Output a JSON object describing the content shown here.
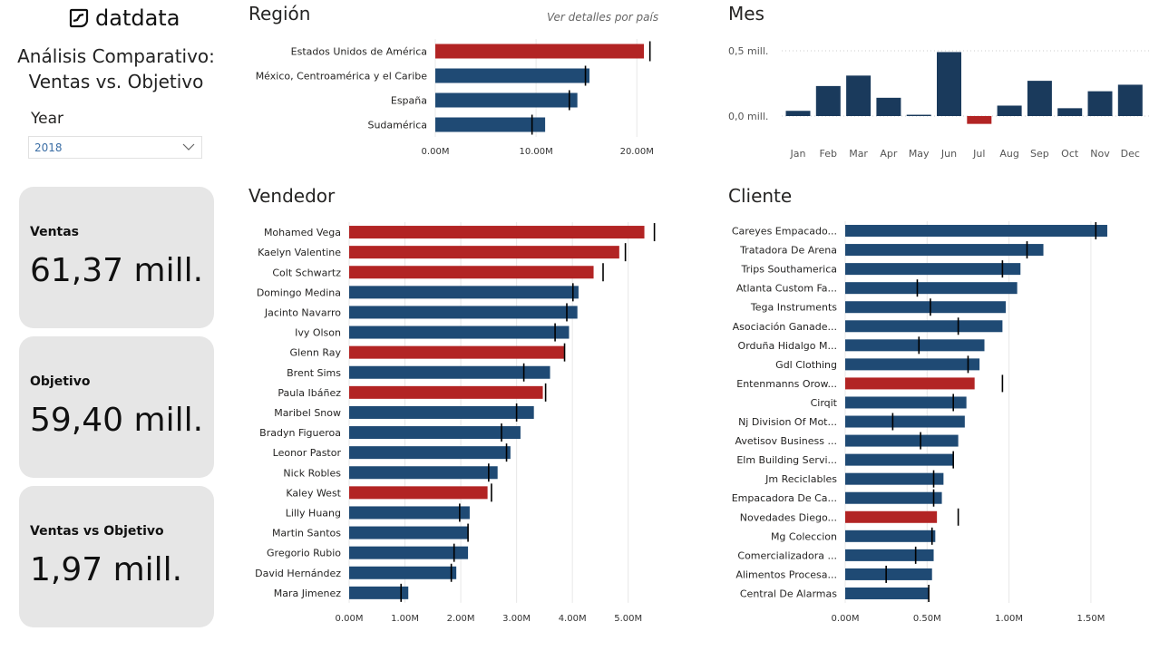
{
  "brand": {
    "name": "datdata"
  },
  "header": {
    "title_line1": "Análisis Comparativo:",
    "title_line2": "Ventas vs. Objetivo"
  },
  "filter": {
    "label": "Year",
    "value": "2018"
  },
  "kpis": [
    {
      "label": "Ventas",
      "value": "61,37 mill."
    },
    {
      "label": "Objetivo",
      "value": "59,40 mill."
    },
    {
      "label": "Ventas vs Objetivo",
      "value": "1,97 mill."
    }
  ],
  "region_link": "Ver detalles por país",
  "colors": {
    "above": "#1f4a74",
    "below": "#b22424",
    "target": "#000000",
    "grid": "#e8e8e8"
  },
  "chart_data": [
    {
      "id": "region",
      "type": "bar",
      "orientation": "horizontal",
      "title": "Región",
      "categories": [
        "Estados Unidos de América",
        "México, Centroamérica y el Caribe",
        "España",
        "Sudamérica"
      ],
      "values": [
        20.7,
        15.3,
        14.1,
        10.9
      ],
      "targets": [
        21.3,
        14.9,
        13.3,
        9.6
      ],
      "unit": "M",
      "xlim": [
        0,
        21.6
      ],
      "ticks": [
        {
          "v": 0,
          "label": "0.00M"
        },
        {
          "v": 10,
          "label": "10.00M"
        },
        {
          "v": 20,
          "label": "20.00M"
        }
      ]
    },
    {
      "id": "mes",
      "type": "bar",
      "orientation": "vertical",
      "title": "Mes",
      "categories": [
        "Jan",
        "Feb",
        "Mar",
        "Apr",
        "May",
        "Jun",
        "Jul",
        "Aug",
        "Sep",
        "Oct",
        "Nov",
        "Dec"
      ],
      "values": [
        0.04,
        0.23,
        0.31,
        0.14,
        0.01,
        0.49,
        -0.06,
        0.08,
        0.27,
        0.06,
        0.19,
        0.24
      ],
      "unit": "mill.",
      "ylim": [
        -0.1,
        0.55
      ],
      "ticks": [
        {
          "v": 0.5,
          "label": "0,5 mill."
        },
        {
          "v": 0,
          "label": "0,0 mill."
        }
      ]
    },
    {
      "id": "vendedor",
      "type": "bar",
      "orientation": "horizontal",
      "title": "Vendedor",
      "categories": [
        "Mohamed Vega",
        "Kaelyn Valentine",
        "Colt Schwartz",
        "Domingo Medina",
        "Jacinto Navarro",
        "Ivy Olson",
        "Glenn Ray",
        "Brent Sims",
        "Paula Ibáñez",
        "Maribel Snow",
        "Bradyn Figueroa",
        "Leonor Pastor",
        "Nick Robles",
        "Kaley West",
        "Lilly Huang",
        "Martin Santos",
        "Gregorio Rubio",
        "David Hernández",
        "Mara Jimenez"
      ],
      "values": [
        5.29,
        4.84,
        4.38,
        4.11,
        4.09,
        3.94,
        3.85,
        3.6,
        3.47,
        3.31,
        3.07,
        2.89,
        2.66,
        2.48,
        2.16,
        2.14,
        2.13,
        1.92,
        1.06
      ],
      "targets": [
        5.47,
        4.95,
        4.55,
        4.01,
        3.9,
        3.69,
        3.86,
        3.13,
        3.52,
        3.0,
        2.73,
        2.82,
        2.5,
        2.55,
        1.98,
        2.13,
        1.88,
        1.83,
        0.93
      ],
      "unit": "M",
      "xlim": [
        0,
        5.2
      ],
      "ticks": [
        {
          "v": 0,
          "label": "0.00M"
        },
        {
          "v": 1,
          "label": "1.00M"
        },
        {
          "v": 2,
          "label": "2.00M"
        },
        {
          "v": 3,
          "label": "3.00M"
        },
        {
          "v": 4,
          "label": "4.00M"
        },
        {
          "v": 5,
          "label": "5.00M"
        }
      ]
    },
    {
      "id": "cliente",
      "type": "bar",
      "orientation": "horizontal",
      "title": "Cliente",
      "categories": [
        "Careyes Empacado...",
        "Tratadora De Arena",
        "Trips Southamerica",
        "Atlanta Custom Fa...",
        "Tega Instruments",
        "Asociación Ganade...",
        "Orduña Hidalgo M...",
        "Gdl Clothing",
        "Entenmanns Orow...",
        "Cirqit",
        "Nj Division Of Mot...",
        "Avetisov Business ...",
        "Elm Building Servi...",
        "Jm Reciclables",
        "Empacadora De Ca...",
        "Novedades Diego...",
        "Mg Coleccion",
        "Comercializadora ...",
        "Alimentos Procesa...",
        "Central De Alarmas"
      ],
      "values": [
        1.6,
        1.21,
        1.07,
        1.05,
        0.98,
        0.96,
        0.85,
        0.82,
        0.79,
        0.74,
        0.73,
        0.69,
        0.66,
        0.6,
        0.59,
        0.56,
        0.55,
        0.54,
        0.53,
        0.51
      ],
      "targets": [
        1.53,
        1.11,
        0.96,
        0.44,
        0.52,
        0.69,
        0.45,
        0.75,
        0.96,
        0.66,
        0.29,
        0.46,
        0.66,
        0.54,
        0.54,
        0.69,
        0.53,
        0.43,
        0.25,
        0.51
      ],
      "unit": "M",
      "xlim": [
        0,
        1.65
      ],
      "ticks": [
        {
          "v": 0,
          "label": "0.00M"
        },
        {
          "v": 0.5,
          "label": "0.50M"
        },
        {
          "v": 1,
          "label": "1.00M"
        },
        {
          "v": 1.5,
          "label": "1.50M"
        }
      ]
    }
  ]
}
